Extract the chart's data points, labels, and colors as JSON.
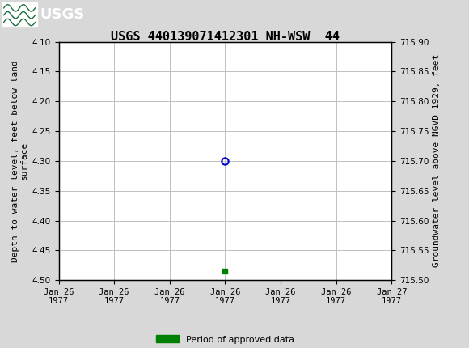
{
  "title": "USGS 440139071412301 NH-WSW  44",
  "ylabel_left": "Depth to water level, feet below land\nsurface",
  "ylabel_right": "Groundwater level above NGVD 1929, feet",
  "ylim_left": [
    4.5,
    4.1
  ],
  "ylim_right": [
    715.5,
    715.9
  ],
  "yticks_left": [
    4.1,
    4.15,
    4.2,
    4.25,
    4.3,
    4.35,
    4.4,
    4.45,
    4.5
  ],
  "yticks_right": [
    715.5,
    715.55,
    715.6,
    715.65,
    715.7,
    715.75,
    715.8,
    715.85,
    715.9
  ],
  "data_point_x_hours": 12,
  "data_point_y": 4.3,
  "green_marker_x_hours": 12,
  "green_marker_y": 4.485,
  "header_color": "#1a6e3c",
  "header_text_color": "#ffffff",
  "background_color": "#d8d8d8",
  "plot_bg_color": "#ffffff",
  "grid_color": "#c0c0c0",
  "point_color": "#0000cc",
  "green_color": "#008000",
  "legend_label": "Period of approved data",
  "title_fontsize": 11,
  "axis_label_fontsize": 8,
  "tick_fontsize": 7.5,
  "xtick_hours": [
    0,
    4,
    8,
    12,
    16,
    20,
    24
  ],
  "xtick_labels": [
    "Jan 26\n1977",
    "Jan 26\n1977",
    "Jan 26\n1977",
    "Jan 26\n1977",
    "Jan 26\n1977",
    "Jan 26\n1977",
    "Jan 27\n1977"
  ]
}
